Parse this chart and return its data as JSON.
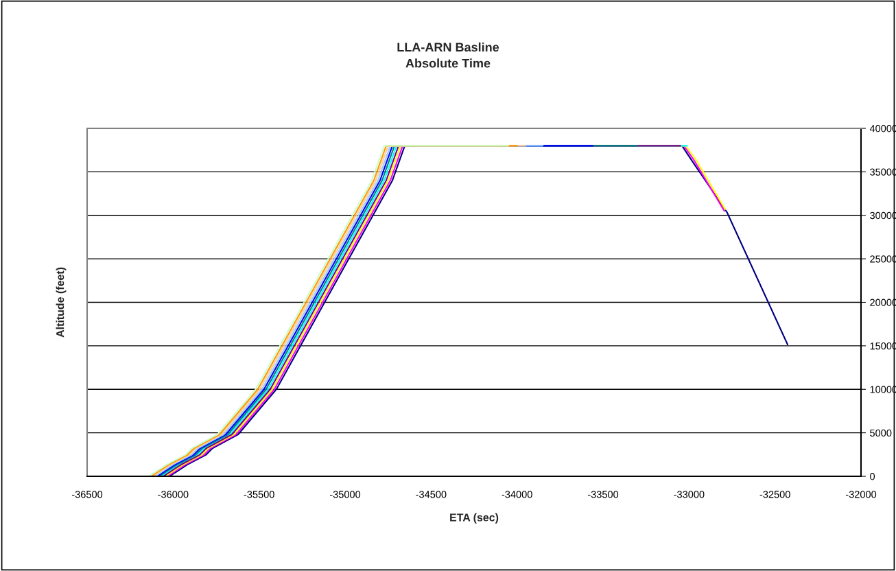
{
  "chart_data": {
    "type": "line",
    "title": "LLA-ARN Basline\nAbsolute Time",
    "xlabel": "ETA (sec)",
    "ylabel": "Altitude (feet)",
    "xlim": [
      -36500,
      -32000
    ],
    "xticks": [
      -36500,
      -36000,
      -35500,
      -35000,
      -34500,
      -34000,
      -33500,
      -33000,
      -32500,
      -32000
    ],
    "ylim": [
      0,
      40000
    ],
    "yticks": [
      0,
      5000,
      10000,
      15000,
      20000,
      25000,
      30000,
      35000,
      40000
    ],
    "grid": "y",
    "marker": "none",
    "line_style": "solid",
    "series": [
      {
        "color": "#000080",
        "x": [
          -36021,
          -35918,
          -35810,
          -35770,
          -35622,
          -35399,
          -35290,
          -34900,
          -34725,
          -34653,
          -33041,
          -32978,
          -32778,
          -32427
        ],
        "values": [
          0,
          1340,
          2450,
          3230,
          4810,
          10020,
          13900,
          27800,
          34000,
          38000,
          38000,
          36130,
          30300,
          15150
        ]
      },
      {
        "color": "#ff00ff",
        "x": [
          -36033,
          -35930,
          -35822,
          -35782,
          -35634,
          -35411,
          -35302,
          -34912,
          -34737,
          -34665,
          -33030,
          -32970,
          -32795
        ],
        "values": [
          0,
          1340,
          2450,
          3230,
          4810,
          10020,
          13900,
          27800,
          34000,
          38000,
          38000,
          36300,
          30500
        ]
      },
      {
        "color": "#ffff00",
        "x": [
          -36045,
          -35942,
          -35834,
          -35794,
          -35646,
          -35423,
          -35314,
          -34924,
          -34749,
          -34677,
          -33020,
          -32960,
          -32790
        ],
        "values": [
          0,
          1340,
          2450,
          3230,
          4810,
          10020,
          13900,
          27800,
          34000,
          38000,
          38000,
          36400,
          30700
        ]
      },
      {
        "color": "#00ffff",
        "x": [
          -36069,
          -35966,
          -35858,
          -35818,
          -35670,
          -35447,
          -35338,
          -34948,
          -34773,
          -34701,
          -33010
        ],
        "values": [
          0,
          1340,
          2450,
          3230,
          4810,
          10020,
          13900,
          27800,
          34000,
          38000,
          38000
        ]
      },
      {
        "color": "#800080",
        "x": [
          -36057,
          -35954,
          -35846,
          -35806,
          -35658,
          -35435,
          -35326,
          -34936,
          -34761,
          -34689,
          -33050
        ],
        "values": [
          0,
          1340,
          2450,
          3230,
          4810,
          10020,
          13900,
          27800,
          34000,
          38000,
          38000
        ]
      },
      {
        "color": "#008080",
        "x": [
          -36081,
          -35978,
          -35870,
          -35830,
          -35682,
          -35459,
          -35350,
          -34960,
          -34785,
          -34713,
          -33300
        ],
        "values": [
          0,
          1340,
          2450,
          3230,
          4810,
          10020,
          13900,
          27800,
          34000,
          38000,
          38000
        ]
      },
      {
        "color": "#0000ff",
        "x": [
          -36093,
          -35990,
          -35882,
          -35842,
          -35694,
          -35471,
          -35362,
          -34972,
          -34797,
          -34725,
          -33560
        ],
        "values": [
          0,
          1340,
          2450,
          3230,
          4810,
          10020,
          13900,
          27800,
          34000,
          38000,
          38000
        ]
      },
      {
        "color": "#99ccff",
        "x": [
          -36105,
          -36002,
          -35894,
          -35854,
          -35706,
          -35483,
          -35374,
          -34984,
          -34809,
          -34737,
          -33850
        ],
        "values": [
          0,
          1340,
          2450,
          3230,
          4810,
          10020,
          13900,
          27800,
          34000,
          38000,
          38000
        ]
      },
      {
        "color": "#ffcc99",
        "x": [
          -36117,
          -36014,
          -35906,
          -35866,
          -35718,
          -35495,
          -35386,
          -34996,
          -34821,
          -34749,
          -33950
        ],
        "values": [
          0,
          1340,
          2450,
          3230,
          4810,
          10020,
          13900,
          27800,
          34000,
          38000,
          38000
        ]
      },
      {
        "color": "#ff9900",
        "x": [
          -36129,
          -36026,
          -35918,
          -35878,
          -35730,
          -35507,
          -35398,
          -35008,
          -34833,
          -34761,
          -34000
        ],
        "values": [
          0,
          1340,
          2450,
          3230,
          4810,
          10020,
          13900,
          27800,
          34000,
          38000,
          38000
        ]
      },
      {
        "color": "#ccffcc",
        "x": [
          -36141,
          -36038,
          -35930,
          -35890,
          -35742,
          -35519,
          -35410,
          -35020,
          -34845,
          -34773,
          -34050
        ],
        "values": [
          0,
          1340,
          2450,
          3230,
          4810,
          10020,
          13900,
          27800,
          34000,
          38000,
          38000
        ]
      }
    ]
  }
}
